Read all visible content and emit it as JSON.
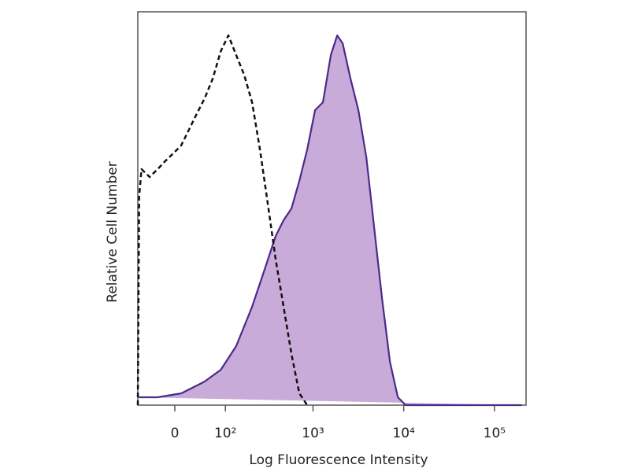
{
  "chart_data": {
    "type": "area",
    "x_label": "Log Fluorescence Intensity",
    "y_label": "Relative Cell Number",
    "xscale": "biexponential",
    "xlim": [
      -65,
      223000
    ],
    "ylim": [
      0,
      100
    ],
    "xticks": [
      0,
      {
        "value": 100,
        "label": "10²"
      },
      {
        "value": 1000,
        "label": "10³"
      },
      {
        "value": 10000,
        "label": "10⁴"
      },
      {
        "value": 100000,
        "label": "10⁵"
      }
    ],
    "series": [
      {
        "color": "#4a2a8a",
        "fill": "#c9abd9",
        "dashed": false,
        "x": [
          -63,
          -27,
          10,
          50,
          87,
          136,
          209,
          285,
          386,
          472,
          577,
          706,
          862,
          1054,
          1288,
          1422,
          1572,
          1848,
          2124,
          2592,
          3168,
          3870,
          4728,
          5772,
          7050,
          8610,
          10500,
          14200,
          200000
        ],
        "values": [
          2,
          2,
          3,
          6,
          9,
          15,
          25,
          34,
          43,
          47,
          50,
          57,
          65,
          75,
          77,
          83,
          89,
          94,
          92,
          83,
          75,
          63,
          45,
          27,
          11,
          2,
          0,
          0,
          0
        ]
      },
      {
        "color": "#111111",
        "fill": null,
        "dashed": true,
        "x": [
          -65,
          -62,
          -57,
          -41,
          -27,
          -15,
          -2.4,
          9.7,
          22,
          35,
          50,
          67,
          87,
          109,
          136,
          169,
          209,
          257,
          316,
          386,
          472,
          577,
          706,
          862
        ],
        "values": [
          0,
          53,
          60,
          58,
          60,
          62,
          64,
          66,
          70,
          74,
          78,
          83,
          90,
          94,
          89,
          84,
          77,
          65,
          51,
          37,
          25,
          13,
          3,
          0
        ]
      }
    ]
  }
}
